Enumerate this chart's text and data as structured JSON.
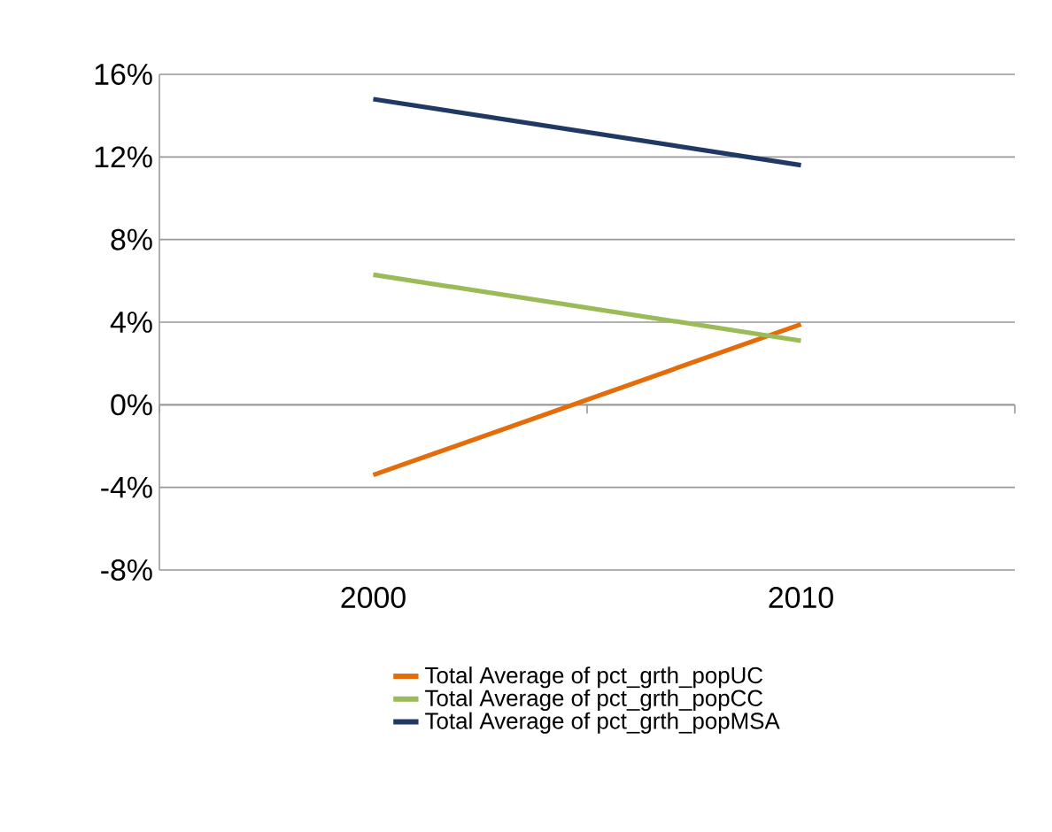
{
  "chart_data": {
    "type": "line",
    "categories": [
      "2000",
      "2010"
    ],
    "series": [
      {
        "name": "Total Average of pct_grth_popUC",
        "color": "#e46c0a",
        "values": [
          -3.4,
          3.9
        ]
      },
      {
        "name": "Total Average of pct_grth_popCC",
        "color": "#9bbb59",
        "values": [
          6.3,
          3.1
        ]
      },
      {
        "name": "Total Average of pct_grth_popMSA",
        "color": "#1f3864",
        "values": [
          14.8,
          11.6
        ]
      }
    ],
    "ylim": [
      -8,
      16
    ],
    "yticks": [
      {
        "value": -8,
        "label": "-8%"
      },
      {
        "value": -4,
        "label": "-4%"
      },
      {
        "value": 0,
        "label": "0%"
      },
      {
        "value": 4,
        "label": "4%"
      },
      {
        "value": 8,
        "label": "8%"
      },
      {
        "value": 12,
        "label": "12%"
      },
      {
        "value": 16,
        "label": "16%"
      }
    ],
    "grid": "y",
    "legend": "bottom",
    "marker": "none",
    "line_style": "solid"
  }
}
